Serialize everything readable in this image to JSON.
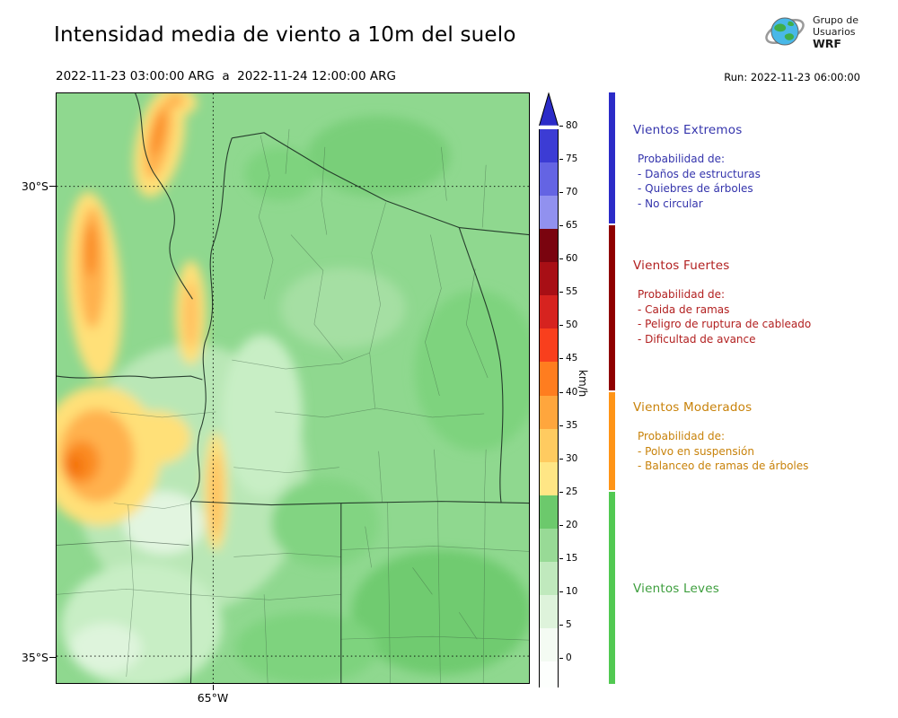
{
  "header": {
    "title": "Intensidad media de viento a 10m del suelo",
    "date_range": "2022-11-23 03:00:00 ARG  a  2022-11-24 12:00:00 ARG",
    "run_label": "Run: 2022-11-23 06:00:00",
    "logo": {
      "line1": "Grupo de",
      "line2": "Usuarios",
      "line3": "WRF"
    }
  },
  "axes": {
    "lat_labels": [
      "30°S",
      "35°S"
    ],
    "lon_label": "65°W"
  },
  "colorbar": {
    "unit": "km/h",
    "min": 0,
    "max": 80,
    "step": 5,
    "tick_values": [
      0,
      5,
      10,
      15,
      20,
      25,
      30,
      35,
      40,
      45,
      50,
      55,
      60,
      65,
      70,
      75,
      80
    ],
    "colors_low_to_high": [
      "#f4fbf3",
      "#def3db",
      "#c0e9bd",
      "#98da96",
      "#6cc96c",
      "#ffe685",
      "#ffcb60",
      "#ffa63d",
      "#ff7d1f",
      "#f93f1d",
      "#d6231f",
      "#a80f15",
      "#7a040f",
      "#9191ef",
      "#6464e3",
      "#3c3cd4"
    ],
    "arrow_color": "#2b2bc8",
    "under_color": "#fdfffd"
  },
  "category_bar": {
    "segments": [
      {
        "label": "Vientos Extremos",
        "from": 65,
        "to": 85,
        "color": "#2b2bc8"
      },
      {
        "label": "Vientos Fuertes",
        "from": 40,
        "to": 65,
        "color": "#8f0000"
      },
      {
        "label": "Vientos Moderados",
        "from": 25,
        "to": 40,
        "color": "#ff9416"
      },
      {
        "label": "Vientos Leves",
        "from": -5,
        "to": 25,
        "color": "#52c952"
      }
    ]
  },
  "legend": {
    "prob_header": "Probabilidad de:",
    "categories": [
      {
        "title": "Vientos Extremos",
        "color": "#3434ac",
        "items": [
          "- Daños de estructuras",
          "- Quiebres de árboles",
          "- No circular"
        ]
      },
      {
        "title": "Vientos Fuertes",
        "color": "#b22020",
        "items": [
          "- Caida de ramas",
          "- Peligro de ruptura de cableado",
          "- Dificultad de avance"
        ]
      },
      {
        "title": "Vientos Moderados",
        "color": "#c8820a",
        "items": [
          "- Polvo en suspensión",
          "- Balanceo de ramas de árboles"
        ]
      },
      {
        "title": "Vientos Leves",
        "color": "#3d9e3d",
        "items": []
      }
    ]
  }
}
